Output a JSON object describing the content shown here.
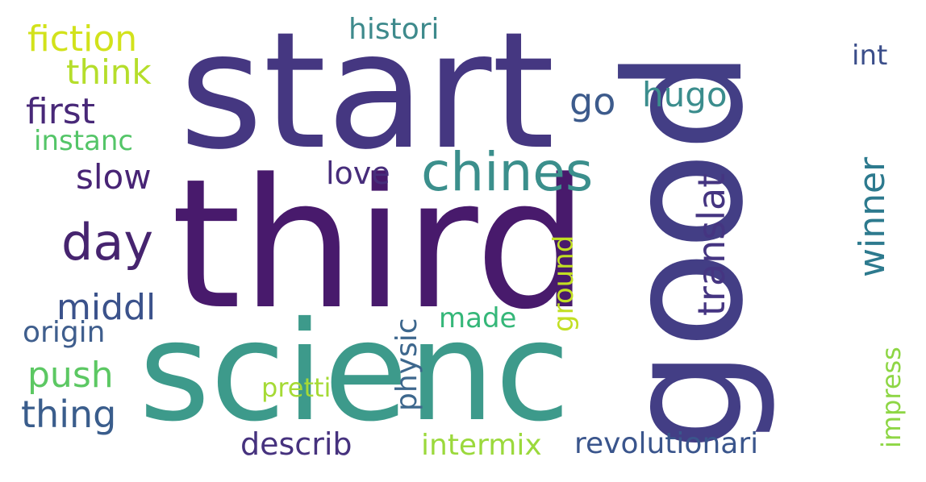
{
  "words": [
    {
      "text": "start",
      "color": "#453781",
      "orientation": "horizontal"
    },
    {
      "text": "third",
      "color": "#481a6c",
      "orientation": "horizontal"
    },
    {
      "text": "good",
      "color": "#433e85",
      "orientation": "vertical"
    },
    {
      "text": "scienc",
      "color": "#3d9a8b",
      "orientation": "horizontal"
    },
    {
      "text": "chines",
      "color": "#3b8f8c",
      "orientation": "horizontal"
    },
    {
      "text": "day",
      "color": "#46246f",
      "orientation": "horizontal"
    },
    {
      "text": "fiction",
      "color": "#d2e21b",
      "orientation": "horizontal"
    },
    {
      "text": "think",
      "color": "#b5de2b",
      "orientation": "horizontal"
    },
    {
      "text": "first",
      "color": "#482878",
      "orientation": "horizontal"
    },
    {
      "text": "instanc",
      "color": "#54c568",
      "orientation": "horizontal"
    },
    {
      "text": "slow",
      "color": "#482475",
      "orientation": "horizontal"
    },
    {
      "text": "histori",
      "color": "#3e8a8c",
      "orientation": "horizontal"
    },
    {
      "text": "go",
      "color": "#3d5b8c",
      "orientation": "horizontal"
    },
    {
      "text": "hugo",
      "color": "#3b8d8d",
      "orientation": "horizontal"
    },
    {
      "text": "int",
      "color": "#3b4e8a",
      "orientation": "horizontal"
    },
    {
      "text": "love",
      "color": "#472d7b",
      "orientation": "horizontal"
    },
    {
      "text": "translat",
      "color": "#453581",
      "orientation": "vertical"
    },
    {
      "text": "winner",
      "color": "#2d7a8e",
      "orientation": "vertical"
    },
    {
      "text": "middl",
      "color": "#3b528b",
      "orientation": "horizontal"
    },
    {
      "text": "origin",
      "color": "#3f5e8d",
      "orientation": "horizontal"
    },
    {
      "text": "push",
      "color": "#5cc863",
      "orientation": "horizontal"
    },
    {
      "text": "thing",
      "color": "#3a5d8c",
      "orientation": "horizontal"
    },
    {
      "text": "made",
      "color": "#35b779",
      "orientation": "horizontal"
    },
    {
      "text": "ground",
      "color": "#c2df23",
      "orientation": "vertical"
    },
    {
      "text": "physic",
      "color": "#3d678d",
      "orientation": "vertical"
    },
    {
      "text": "pretti",
      "color": "#a5da35",
      "orientation": "horizontal"
    },
    {
      "text": "impress",
      "color": "#8ed645",
      "orientation": "vertical"
    },
    {
      "text": "describ",
      "color": "#46327e",
      "orientation": "horizontal"
    },
    {
      "text": "intermix",
      "color": "#9bd93c",
      "orientation": "horizontal"
    },
    {
      "text": "revolutionari",
      "color": "#3a558c",
      "orientation": "horizontal"
    }
  ]
}
